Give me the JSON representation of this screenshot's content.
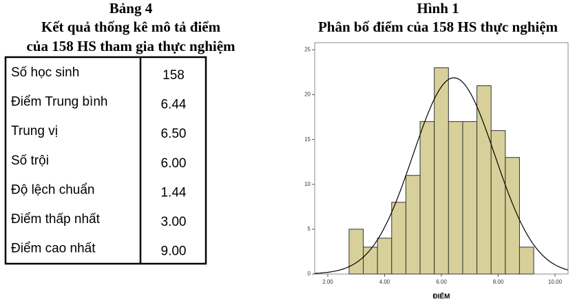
{
  "header": {
    "title": "Bảng 4",
    "lines": [
      "Kết quả thống kê mô tả điểm",
      "của 158 HS tham gia thực nghiệm"
    ]
  },
  "table": {
    "rows": [
      [
        "Số học sinh",
        "158"
      ],
      [
        "Điểm Trung bình",
        "6.44"
      ],
      [
        "Trung vị",
        "6.50"
      ],
      [
        "Số trội",
        "6.00"
      ],
      [
        "Độ lệch chuẩn",
        "1.44"
      ],
      [
        "Điểm thấp nhất",
        "3.00"
      ],
      [
        "Điểm cao nhất",
        "9.00"
      ]
    ]
  },
  "chart_data": {
    "type": "histogram",
    "caption": "Hình 1",
    "title": "Phân bố điểm của 158 HS thực nghiệm",
    "x_label": "ĐIỂM",
    "bins": [
      2.75,
      3.25,
      3.75,
      4.25,
      4.75,
      5.25,
      5.75,
      6.25,
      6.75,
      7.25,
      7.75,
      8.25,
      8.75,
      9.25
    ],
    "values": [
      5,
      3,
      4,
      8,
      11,
      17,
      23,
      17,
      17,
      21,
      16,
      13,
      3
    ],
    "color": "#d8d09a",
    "xlim": [
      1.54,
      10.46
    ],
    "xticks": [
      {
        "value": 2,
        "label": "2.00"
      },
      {
        "value": 4,
        "label": "4.00"
      },
      {
        "value": 6,
        "label": "6.00"
      },
      {
        "value": 8,
        "label": "8.00"
      },
      {
        "value": 10,
        "label": "10.00"
      }
    ],
    "ylim": [
      0,
      25.8
    ],
    "yticks": [
      0,
      5,
      10,
      15,
      20,
      25
    ]
  }
}
